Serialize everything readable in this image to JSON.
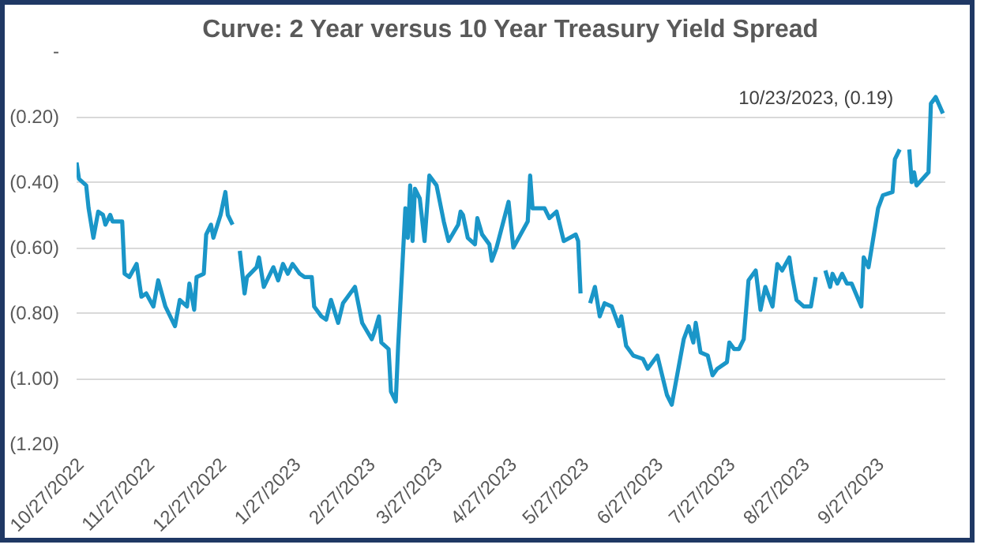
{
  "chart_data": {
    "type": "line",
    "title": "Curve: 2 Year versus 10 Year Treasury Yield Spread",
    "x": [
      "2022-10-27",
      "2022-10-28",
      "2022-10-31",
      "2022-11-01",
      "2022-11-03",
      "2022-11-05",
      "2022-11-07",
      "2022-11-08",
      "2022-11-10",
      "2022-11-11",
      "2022-11-15",
      "2022-11-16",
      "2022-11-18",
      "2022-11-21",
      "2022-11-23",
      "2022-11-25",
      "2022-11-28",
      "2022-11-30",
      "2022-12-03",
      "2022-12-07",
      "2022-12-09",
      "2022-12-12",
      "2022-12-13",
      "2022-12-15",
      "2022-12-16",
      "2022-12-19",
      "2022-12-20",
      "2022-12-22",
      "2022-12-23",
      "2022-12-26",
      "2022-12-28",
      "2022-12-29",
      "2022-12-31",
      "2023-01-01",
      "2023-01-03",
      "2023-01-05",
      "2023-01-06",
      "2023-01-10",
      "2023-01-11",
      "2023-01-13",
      "2023-01-17",
      "2023-01-19",
      "2023-01-21",
      "2023-01-23",
      "2023-01-25",
      "2023-01-28",
      "2023-01-30",
      "2023-02-02",
      "2023-02-03",
      "2023-02-06",
      "2023-02-08",
      "2023-02-10",
      "2023-02-13",
      "2023-02-15",
      "2023-02-17",
      "2023-02-20",
      "2023-02-23",
      "2023-02-27",
      "2023-02-28",
      "2023-03-02",
      "2023-03-03",
      "2023-03-06",
      "2023-03-07",
      "2023-03-09",
      "2023-03-10",
      "2023-03-13",
      "2023-03-14",
      "2023-03-15",
      "2023-03-16",
      "2023-03-17",
      "2023-03-19",
      "2023-03-21",
      "2023-03-23",
      "2023-03-26",
      "2023-03-29",
      "2023-03-31",
      "2023-04-04",
      "2023-04-05",
      "2023-04-06",
      "2023-04-08",
      "2023-04-11",
      "2023-04-12",
      "2023-04-14",
      "2023-04-17",
      "2023-04-18",
      "2023-04-20",
      "2023-04-25",
      "2023-04-27",
      "2023-05-03",
      "2023-05-04",
      "2023-05-05",
      "2023-05-10",
      "2023-05-12",
      "2023-05-15",
      "2023-05-18",
      "2023-05-23",
      "2023-05-24",
      "2023-05-25",
      "2023-05-27",
      "2023-05-29",
      "2023-05-31",
      "2023-06-02",
      "2023-06-04",
      "2023-06-07",
      "2023-06-10",
      "2023-06-11",
      "2023-06-13",
      "2023-06-16",
      "2023-06-20",
      "2023-06-22",
      "2023-06-26",
      "2023-06-30",
      "2023-07-02",
      "2023-07-07",
      "2023-07-09",
      "2023-07-11",
      "2023-07-12",
      "2023-07-14",
      "2023-07-17",
      "2023-07-19",
      "2023-07-21",
      "2023-07-25",
      "2023-07-26",
      "2023-07-28",
      "2023-07-30",
      "2023-08-01",
      "2023-08-03",
      "2023-08-06",
      "2023-08-08",
      "2023-08-10",
      "2023-08-13",
      "2023-08-15",
      "2023-08-17",
      "2023-08-20",
      "2023-08-21",
      "2023-08-23",
      "2023-08-26",
      "2023-08-29",
      "2023-08-31",
      "2023-09-02",
      "2023-09-04",
      "2023-09-06",
      "2023-09-07",
      "2023-09-09",
      "2023-09-11",
      "2023-09-13",
      "2023-09-15",
      "2023-09-19",
      "2023-09-20",
      "2023-09-22",
      "2023-09-24",
      "2023-09-26",
      "2023-09-28",
      "2023-10-02",
      "2023-10-03",
      "2023-10-05",
      "2023-10-07",
      "2023-10-09",
      "2023-10-10",
      "2023-10-11",
      "2023-10-12",
      "2023-10-17",
      "2023-10-18",
      "2023-10-20",
      "2023-10-23"
    ],
    "series": [
      {
        "color": "#1a96c8",
        "values": [
          -0.34,
          -0.39,
          -0.41,
          -0.48,
          -0.57,
          -0.49,
          -0.5,
          -0.53,
          -0.5,
          -0.52,
          -0.52,
          -0.68,
          -0.69,
          -0.65,
          -0.75,
          -0.74,
          -0.78,
          -0.7,
          -0.78,
          -0.84,
          -0.76,
          -0.78,
          -0.71,
          -0.79,
          -0.69,
          -0.68,
          -0.56,
          -0.53,
          -0.57,
          -0.5,
          -0.43,
          -0.5,
          -0.53,
          null,
          -0.61,
          -0.74,
          -0.69,
          -0.66,
          -0.63,
          -0.72,
          -0.66,
          -0.7,
          -0.65,
          -0.68,
          -0.65,
          -0.68,
          -0.69,
          -0.69,
          -0.78,
          -0.81,
          -0.82,
          -0.76,
          -0.83,
          -0.77,
          -0.75,
          -0.72,
          -0.83,
          -0.88,
          -0.86,
          -0.81,
          -0.89,
          -0.91,
          -1.04,
          -1.07,
          -0.9,
          -0.48,
          -0.57,
          -0.41,
          -0.58,
          -0.42,
          -0.45,
          -0.58,
          -0.38,
          -0.41,
          -0.52,
          -0.58,
          -0.53,
          -0.49,
          -0.5,
          -0.57,
          -0.59,
          -0.51,
          -0.56,
          -0.59,
          -0.64,
          -0.6,
          -0.46,
          -0.6,
          -0.52,
          -0.38,
          -0.48,
          -0.48,
          -0.51,
          -0.49,
          -0.58,
          -0.56,
          -0.58,
          -0.74,
          null,
          -0.77,
          -0.72,
          -0.81,
          -0.77,
          -0.78,
          -0.84,
          -0.81,
          -0.9,
          -0.93,
          -0.94,
          -0.97,
          -0.93,
          -1.05,
          -1.08,
          -0.88,
          -0.84,
          -0.89,
          -0.83,
          -0.92,
          -0.93,
          -0.99,
          -0.97,
          -0.95,
          -0.89,
          -0.91,
          -0.91,
          -0.88,
          -0.7,
          -0.67,
          -0.79,
          -0.72,
          -0.78,
          -0.65,
          -0.67,
          -0.63,
          -0.68,
          -0.76,
          -0.78,
          -0.78,
          -0.69,
          null,
          -0.67,
          -0.72,
          -0.68,
          -0.71,
          -0.68,
          -0.71,
          -0.71,
          -0.78,
          -0.63,
          -0.66,
          -0.57,
          -0.48,
          -0.44,
          -0.43,
          -0.33,
          -0.3,
          null,
          -0.3,
          -0.4,
          -0.37,
          -0.41,
          -0.37,
          -0.16,
          -0.14,
          -0.19
        ]
      }
    ],
    "ylim": [
      -1.2,
      0
    ],
    "yticks": [
      {
        "value": 0,
        "label": "-"
      },
      {
        "value": -0.2,
        "label": "(0.20)"
      },
      {
        "value": -0.4,
        "label": "(0.40)"
      },
      {
        "value": -0.6,
        "label": "(0.60)"
      },
      {
        "value": -0.8,
        "label": "(0.80)"
      },
      {
        "value": -1.0,
        "label": "(1.00)"
      },
      {
        "value": -1.2,
        "label": "(1.20)"
      }
    ],
    "xlim": [
      "2022-10-27",
      "2023-10-24"
    ],
    "xticks": [
      {
        "value": "2022-10-27",
        "label": "10/27/2022"
      },
      {
        "value": "2022-11-27",
        "label": "11/27/2022"
      },
      {
        "value": "2022-12-27",
        "label": "12/27/2022"
      },
      {
        "value": "2023-01-27",
        "label": "1/27/2023"
      },
      {
        "value": "2023-02-27",
        "label": "2/27/2023"
      },
      {
        "value": "2023-03-27",
        "label": "3/27/2023"
      },
      {
        "value": "2023-04-27",
        "label": "4/27/2023"
      },
      {
        "value": "2023-05-27",
        "label": "5/27/2023"
      },
      {
        "value": "2023-06-27",
        "label": "6/27/2023"
      },
      {
        "value": "2023-07-27",
        "label": "7/27/2023"
      },
      {
        "value": "2023-08-27",
        "label": "8/27/2023"
      },
      {
        "value": "2023-09-27",
        "label": "9/27/2023"
      }
    ],
    "annotations": [
      {
        "text": "10/23/2023,  (0.19)",
        "x": "2023-10-23",
        "y": -0.19
      }
    ],
    "grid": "y",
    "marker": "none",
    "line_style": "solid"
  }
}
